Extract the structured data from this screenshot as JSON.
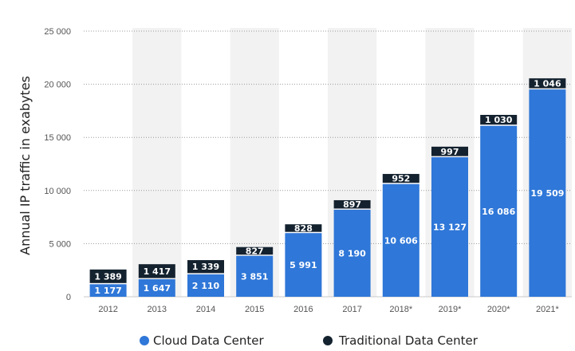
{
  "chart_data": {
    "type": "bar",
    "stacked": true,
    "categories": [
      "2012",
      "2013",
      "2014",
      "2015",
      "2016",
      "2017",
      "2018*",
      "2019*",
      "2020*",
      "2021*"
    ],
    "series": [
      {
        "name": "Cloud Data Center",
        "color": "#2f77d8",
        "values": [
          1177,
          1647,
          2110,
          3851,
          5991,
          8190,
          10606,
          13127,
          16086,
          19509
        ],
        "labels": [
          "1 177",
          "1 647",
          "2 110",
          "3 851",
          "5 991",
          "8 190",
          "10 606",
          "13 127",
          "16 086",
          "19 509"
        ]
      },
      {
        "name": "Traditional Data Center",
        "color": "#14222f",
        "values": [
          1389,
          1417,
          1339,
          827,
          828,
          897,
          952,
          997,
          1030,
          1046
        ],
        "labels": [
          "1 389",
          "1 417",
          "1 339",
          "827",
          "828",
          "897",
          "952",
          "997",
          "1 030",
          "1 046"
        ]
      }
    ],
    "ylabel": "Annual IP traffic in exabytes",
    "xlabel": "",
    "ylim": [
      0,
      25000
    ],
    "yticks": [
      0,
      5000,
      10000,
      15000,
      20000,
      25000
    ],
    "ytick_labels": [
      "0",
      "5 000",
      "10 000",
      "15 000",
      "20 000",
      "25 000"
    ],
    "grid": true,
    "legend_position": "bottom"
  }
}
